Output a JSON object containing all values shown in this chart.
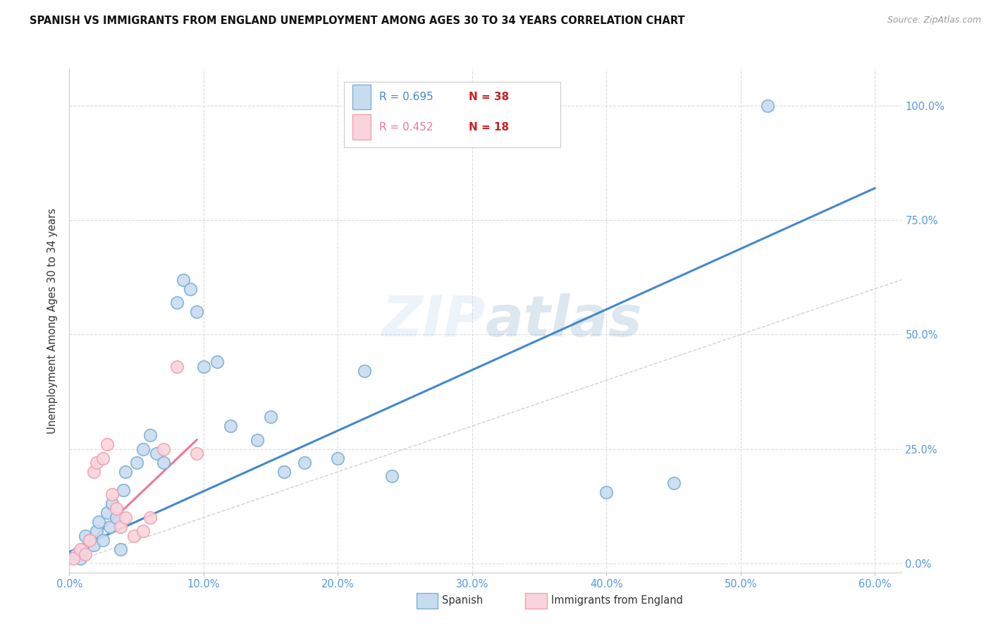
{
  "title": "SPANISH VS IMMIGRANTS FROM ENGLAND UNEMPLOYMENT AMONG AGES 30 TO 34 YEARS CORRELATION CHART",
  "source": "Source: ZipAtlas.com",
  "ylabel": "Unemployment Among Ages 30 to 34 years",
  "xlim": [
    0.0,
    0.62
  ],
  "ylim": [
    -0.02,
    1.08
  ],
  "legend1_r": "R = 0.695",
  "legend1_n": "N = 38",
  "legend2_r": "R = 0.452",
  "legend2_n": "N = 18",
  "legend_label1": "Spanish",
  "legend_label2": "Immigrants from England",
  "watermark_zip": "ZIP",
  "watermark_atlas": "atlas",
  "blue_color": "#7BAFD4",
  "blue_face": "#C8DCF0",
  "pink_color": "#F4A0B0",
  "pink_face": "#FAD4DC",
  "blue_line_color": "#4488CC",
  "pink_line_color": "#EE7799",
  "diagonal_color": "#CCCCCC",
  "blue_scatter_x": [
    0.005,
    0.008,
    0.01,
    0.012,
    0.015,
    0.018,
    0.02,
    0.022,
    0.025,
    0.028,
    0.03,
    0.032,
    0.035,
    0.038,
    0.04,
    0.042,
    0.05,
    0.055,
    0.06,
    0.065,
    0.07,
    0.08,
    0.085,
    0.09,
    0.095,
    0.1,
    0.11,
    0.12,
    0.14,
    0.15,
    0.16,
    0.175,
    0.2,
    0.22,
    0.24,
    0.4,
    0.45,
    0.52
  ],
  "blue_scatter_y": [
    0.02,
    0.01,
    0.03,
    0.06,
    0.05,
    0.04,
    0.07,
    0.09,
    0.05,
    0.11,
    0.08,
    0.13,
    0.1,
    0.03,
    0.16,
    0.2,
    0.22,
    0.25,
    0.28,
    0.24,
    0.22,
    0.57,
    0.62,
    0.6,
    0.55,
    0.43,
    0.44,
    0.3,
    0.27,
    0.32,
    0.2,
    0.22,
    0.23,
    0.42,
    0.19,
    0.155,
    0.175,
    1.0
  ],
  "pink_scatter_x": [
    0.003,
    0.008,
    0.012,
    0.015,
    0.018,
    0.02,
    0.025,
    0.028,
    0.032,
    0.035,
    0.038,
    0.042,
    0.048,
    0.055,
    0.06,
    0.07,
    0.08,
    0.095
  ],
  "pink_scatter_y": [
    0.01,
    0.03,
    0.02,
    0.05,
    0.2,
    0.22,
    0.23,
    0.26,
    0.15,
    0.12,
    0.08,
    0.1,
    0.06,
    0.07,
    0.1,
    0.25,
    0.43,
    0.24
  ],
  "blue_trend_x": [
    0.0,
    0.6
  ],
  "blue_trend_y": [
    0.025,
    0.82
  ],
  "pink_trend_x": [
    0.0,
    0.095
  ],
  "pink_trend_y": [
    0.005,
    0.27
  ],
  "tick_color": "#5599DD",
  "grid_color": "#DDDDDD",
  "title_fontsize": 10.5
}
